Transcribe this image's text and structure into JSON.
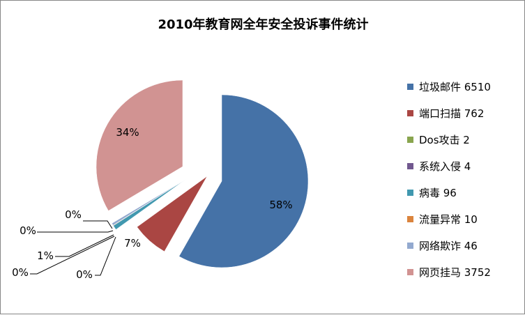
{
  "chart_data": {
    "type": "pie",
    "title": "2010年教育网全年安全投诉事件统计",
    "series": [
      {
        "name": "垃圾邮件",
        "value": 6510,
        "label": "垃圾邮件 6510",
        "percent_label": "58%",
        "color": "#4572A7"
      },
      {
        "name": "端口扫描",
        "value": 762,
        "label": "端口扫描 762",
        "percent_label": "7%",
        "color": "#AA4643"
      },
      {
        "name": "Dos攻击",
        "value": 2,
        "label": "Dos攻击 2",
        "percent_label": "0%",
        "color": "#89A54E"
      },
      {
        "name": "系统入侵",
        "value": 4,
        "label": "系统入侵 4",
        "percent_label": "0%",
        "color": "#71588F"
      },
      {
        "name": "病毒",
        "value": 96,
        "label": "病毒 96",
        "percent_label": "1%",
        "color": "#4198AF"
      },
      {
        "name": "流量异常",
        "value": 10,
        "label": "流量异常 10",
        "percent_label": "0%",
        "color": "#DB843D"
      },
      {
        "name": "网络欺诈",
        "value": 46,
        "label": "网络欺诈 46",
        "percent_label": "0%",
        "color": "#93A9CF"
      },
      {
        "name": "网页挂马",
        "value": 3752,
        "label": "网页挂马 3752",
        "percent_label": "34%",
        "color": "#D19392"
      }
    ],
    "legend_position": "right"
  }
}
